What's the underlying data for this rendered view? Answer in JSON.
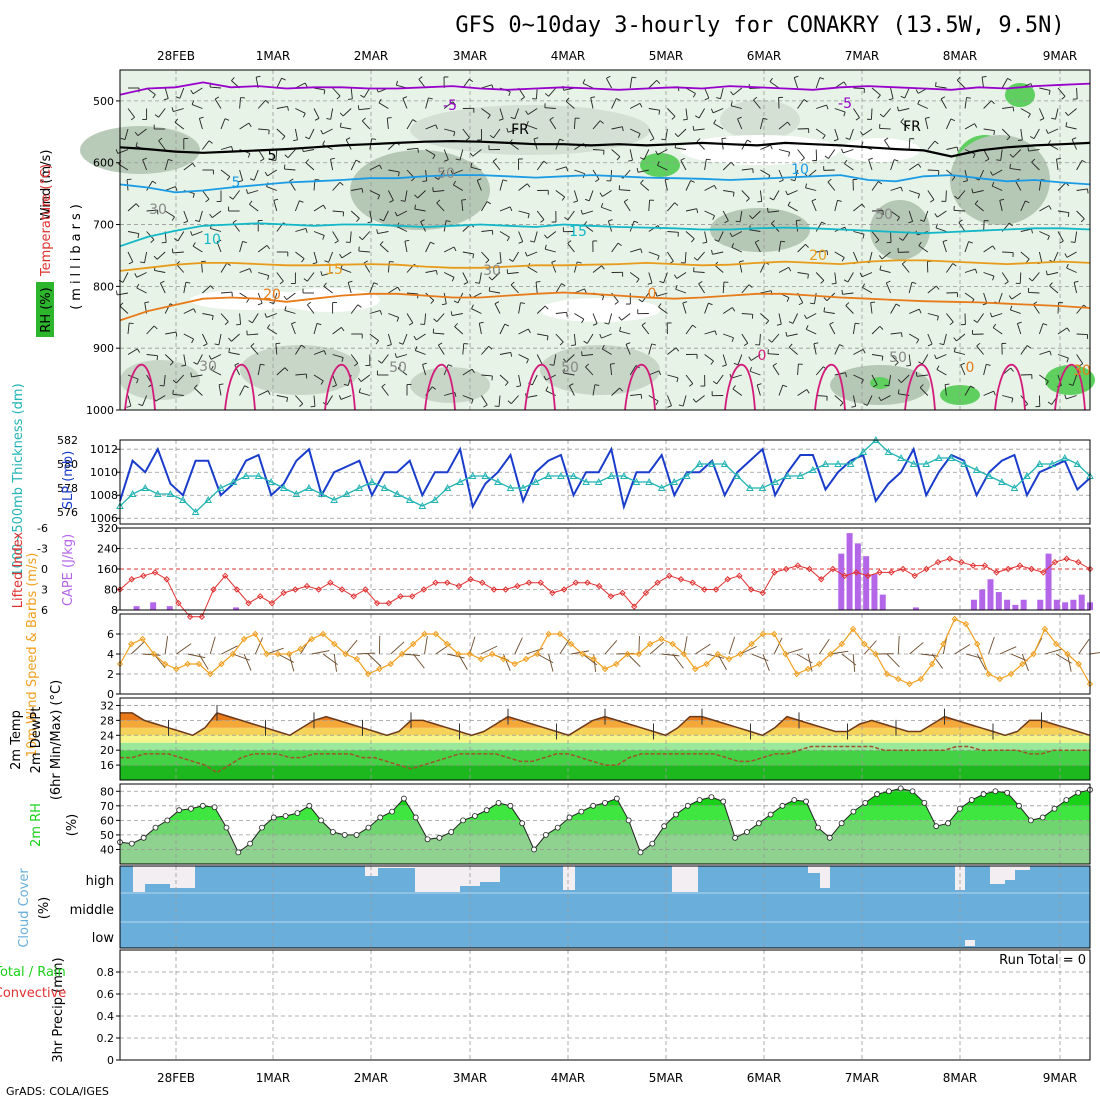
{
  "chart_data": [
    {
      "type": "line",
      "title": "GFS 0~10day 3-hourly for CONAKRY (13.5W, 9.5N)",
      "x": [
        "28FEB",
        "1MAR",
        "2MAR",
        "3MAR",
        "4MAR",
        "5MAR",
        "6MAR",
        "7MAR",
        "8MAR",
        "9MAR"
      ],
      "ylabel": "(millibars)",
      "ylabels": {
        "temp": "Temperature (°C)",
        "wind": "Wind (m/s)",
        "rh": "RH (%)"
      },
      "ylim": [
        1000,
        450
      ],
      "yticks": [
        "500",
        "600",
        "700",
        "800",
        "900",
        "1000"
      ],
      "contours": [
        {
          "name": "-5",
          "color": "#9900cc",
          "label": "-5",
          "p": [
            490,
            480,
            478,
            470,
            478,
            476,
            480,
            478,
            478,
            480,
            480,
            478,
            476,
            480,
            482,
            480,
            478,
            480,
            482,
            480,
            478,
            480,
            476,
            478,
            480,
            482,
            478,
            476,
            478,
            480,
            482,
            478,
            480,
            476,
            474,
            472
          ]
        },
        {
          "name": "FR",
          "color": "#000000",
          "label": "FR",
          "p": [
            575,
            578,
            582,
            584,
            582,
            580,
            578,
            575,
            572,
            570,
            568,
            566,
            565,
            566,
            568,
            570,
            570,
            572,
            570,
            572,
            570,
            568,
            570,
            572,
            568,
            570,
            572,
            575,
            578,
            580,
            590,
            580,
            575,
            572,
            570,
            568
          ]
        },
        {
          "name": "5",
          "color": "#1a9be6",
          "label": "5",
          "p": [
            635,
            640,
            648,
            645,
            640,
            636,
            632,
            630,
            628,
            625,
            625,
            622,
            620,
            620,
            622,
            624,
            622,
            620,
            622,
            624,
            625,
            626,
            628,
            626,
            624,
            622,
            620,
            628,
            630,
            622,
            620,
            625,
            630,
            628,
            632,
            635
          ]
        },
        {
          "name": "10",
          "color": "#12b8c8",
          "label": "10",
          "p": [
            735,
            720,
            710,
            702,
            700,
            698,
            700,
            702,
            700,
            700,
            702,
            704,
            702,
            700,
            702,
            704,
            700,
            702,
            704,
            705,
            706,
            708,
            708,
            706,
            705,
            706,
            708,
            710,
            712,
            714,
            712,
            710,
            708,
            706,
            706,
            708
          ]
        },
        {
          "name": "15",
          "color": "#e89b1a",
          "label": "15",
          "p": [
            775,
            770,
            765,
            762,
            762,
            764,
            766,
            766,
            765,
            764,
            765,
            768,
            770,
            770,
            768,
            766,
            766,
            765,
            764,
            762,
            764,
            766,
            765,
            762,
            760,
            762,
            764,
            760,
            758,
            758,
            760,
            762,
            764,
            762,
            760,
            762
          ]
        },
        {
          "name": "20",
          "color": "#e87a1a",
          "label": "20",
          "p": [
            855,
            840,
            830,
            820,
            818,
            820,
            825,
            820,
            815,
            812,
            812,
            815,
            818,
            818,
            815,
            812,
            810,
            812,
            815,
            818,
            820,
            818,
            815,
            812,
            812,
            815,
            818,
            820,
            822,
            824,
            825,
            826,
            828,
            830,
            832,
            835
          ]
        }
      ],
      "contour_labels": [
        "-5",
        "-5",
        "FR",
        "FR",
        "5",
        "5",
        "10",
        "10",
        "15",
        "15",
        "20",
        "20",
        "0",
        "0",
        "0",
        "30",
        "30",
        "30",
        "30",
        "50",
        "50",
        "50",
        "50",
        "50"
      ]
    },
    {
      "type": "line",
      "ylabels": {
        "thick": "1000~500mb Thickness (dm)",
        "slp": "SLP (mb)"
      },
      "thick_ticks": [
        "582",
        "580",
        "578",
        "576"
      ],
      "slp_ticks": [
        "1012",
        "1010",
        "1008",
        "1006"
      ],
      "slp_ylim": [
        1005.5,
        1012.8
      ],
      "series": [
        {
          "name": "SLP",
          "color": "#1a3ccc",
          "values": [
            1007.5,
            1011,
            1010,
            1012,
            1009,
            1008,
            1011,
            1011,
            1008,
            1009,
            1011,
            1011.5,
            1008,
            1009,
            1011,
            1012,
            1008,
            1010,
            1010.5,
            1011,
            1008,
            1010,
            1010,
            1011,
            1008,
            1010,
            1010,
            1012,
            1007,
            1009,
            1010,
            1011.5,
            1007.5,
            1010,
            1011,
            1011.5,
            1008,
            1010,
            1010,
            1012,
            1007,
            1010,
            1010,
            1011.5,
            1008,
            1010,
            1010,
            1011,
            1008,
            1010,
            1011,
            1012,
            1008,
            1010,
            1011.5,
            1011.5,
            1008.5,
            1010,
            1011,
            1011.5,
            1007.5,
            1009,
            1010,
            1012,
            1008,
            1010,
            1011.5,
            1011,
            1008,
            1010,
            1011,
            1011.5,
            1008,
            1010,
            1010.5,
            1011,
            1008.5,
            1009.5
          ]
        },
        {
          "name": "Thickness",
          "color": "#22b3b3",
          "values": [
            576.5,
            577.5,
            578,
            577.5,
            577.5,
            577,
            576,
            577,
            578,
            578.5,
            579,
            579,
            578.5,
            578,
            577.5,
            578,
            577.5,
            577,
            577.5,
            578,
            578.5,
            578,
            577.5,
            577,
            576.5,
            577,
            578,
            578.5,
            579,
            579,
            578.5,
            578,
            578,
            578.5,
            579,
            579,
            579,
            578.5,
            578.5,
            579,
            579,
            578.5,
            578.5,
            578,
            578.5,
            579,
            580,
            580,
            580,
            579,
            578,
            578,
            578.5,
            579,
            579,
            579.5,
            580,
            580,
            580,
            581,
            582,
            581,
            580.5,
            580,
            580,
            580.5,
            580.5,
            580,
            579.5,
            579,
            578.5,
            578,
            579,
            580,
            580,
            580.5,
            580,
            579
          ]
        }
      ]
    },
    {
      "type": "bar",
      "ylabels": {
        "li": "Lifted Index",
        "cape": "CAPE (J/kg)"
      },
      "li_ticks": [
        "-6",
        "-3",
        "0",
        "3",
        "6"
      ],
      "cape_ticks": [
        "320",
        "240",
        "160",
        "80",
        "8"
      ],
      "series": [
        {
          "name": "Lifted Index",
          "color": "#e03030",
          "values": [
            3,
            1.5,
            1,
            0.5,
            1.5,
            5,
            7,
            7,
            3,
            1,
            3,
            5,
            4,
            5,
            3.5,
            3,
            2.5,
            3,
            2,
            3,
            4,
            3,
            5,
            5,
            4,
            4,
            3,
            2,
            2,
            2.5,
            1.5,
            2,
            3,
            3,
            2.5,
            2,
            2,
            3.5,
            3,
            2,
            2,
            2.5,
            4,
            3.5,
            5.5,
            3.5,
            2,
            1,
            1.5,
            2,
            3,
            3,
            1.5,
            1,
            3,
            3.5,
            0.5,
            0,
            -0.5,
            0,
            1.5,
            0,
            1,
            0.5,
            1,
            0.5,
            0.5,
            0,
            1,
            0,
            -1,
            -1.5,
            -1,
            -0.5,
            -0.5,
            0.5,
            0,
            -0.5,
            0,
            0.5,
            -1,
            -1.5,
            -1,
            0
          ]
        },
        {
          "name": "CAPE",
          "color": "#b366e8",
          "values": [
            0,
            0,
            15,
            0,
            30,
            0,
            15,
            0,
            0,
            0,
            0,
            0,
            0,
            0,
            10,
            0,
            0,
            0,
            0,
            0,
            0,
            0,
            0,
            0,
            0,
            0,
            0,
            0,
            0,
            0,
            0,
            0,
            0,
            0,
            0,
            0,
            0,
            0,
            0,
            0,
            0,
            0,
            0,
            0,
            0,
            0,
            0,
            0,
            0,
            0,
            0,
            0,
            0,
            0,
            0,
            0,
            0,
            0,
            0,
            0,
            0,
            0,
            0,
            0,
            0,
            0,
            0,
            0,
            0,
            0,
            0,
            0,
            0,
            0,
            0,
            0,
            0,
            0,
            0,
            0,
            0,
            0,
            0,
            0,
            0,
            0,
            0,
            220,
            300,
            260,
            210,
            140,
            60,
            0,
            0,
            0,
            10,
            0,
            0,
            0,
            0,
            0,
            0,
            40,
            80,
            120,
            70,
            40,
            20,
            40,
            0,
            40,
            220,
            40,
            30,
            40,
            60,
            30
          ]
        }
      ]
    },
    {
      "type": "line",
      "ylabels": {
        "wind": "10m Wind Speed & Barbs (m/s)"
      },
      "yticks": [
        "6",
        "4",
        "2",
        "0"
      ],
      "series": [
        {
          "name": "10m Wind Speed",
          "color": "#f0a020",
          "values": [
            3,
            5,
            5.5,
            4,
            3,
            2.5,
            3,
            3,
            2,
            3,
            4,
            5.5,
            6,
            4,
            4,
            4,
            4.5,
            5.5,
            6,
            5,
            4,
            3.5,
            2,
            2.5,
            3,
            4,
            5,
            6,
            6,
            5,
            4,
            4,
            3.5,
            4,
            3.5,
            3,
            3.5,
            4,
            6,
            6,
            5,
            4,
            3.5,
            2.5,
            3,
            4,
            4,
            5,
            5.5,
            5,
            4,
            2.5,
            3,
            4,
            3.5,
            4,
            5,
            6,
            6,
            4,
            2,
            2.5,
            3,
            4,
            5,
            6.5,
            5,
            4,
            2,
            1.5,
            1,
            1.5,
            3,
            5,
            7.5,
            7,
            5,
            2,
            1.5,
            2,
            3,
            4,
            6.5,
            5,
            4,
            3,
            1
          ]
        }
      ]
    },
    {
      "type": "area",
      "ylabels": {
        "temp": "2m Temp",
        "dew": "2m DewPt",
        "minmax": "(6hr Min/Max) (°C)"
      },
      "yticks": [
        "32",
        "28",
        "24",
        "20",
        "16"
      ],
      "series": [
        {
          "name": "2m Temp",
          "color": "#e87a1a",
          "values": [
            30,
            30,
            28,
            27,
            26,
            25,
            24,
            26,
            30,
            29,
            28,
            27,
            26,
            25,
            24,
            26,
            28,
            29,
            28,
            27,
            26,
            25,
            24,
            25,
            28,
            28,
            27,
            26,
            25,
            24,
            25,
            27,
            29,
            28,
            27,
            26,
            25,
            24,
            26,
            28,
            29,
            28,
            27,
            26,
            25,
            24,
            26,
            29,
            29,
            28,
            27,
            26,
            25,
            24,
            26,
            29,
            28,
            27,
            26,
            25,
            25,
            27,
            28,
            27,
            26,
            25,
            25,
            27,
            29,
            28,
            27,
            26,
            25,
            24,
            25,
            28,
            28,
            27,
            26,
            25,
            24
          ]
        },
        {
          "name": "2m DewPt",
          "color": "#a0522d",
          "values": [
            18,
            18,
            19,
            19,
            19,
            18,
            17,
            16,
            14,
            16,
            18,
            19,
            19,
            19,
            18,
            18,
            19,
            19,
            19,
            19,
            18,
            18,
            17,
            16,
            15,
            16,
            17,
            18,
            19,
            19,
            19,
            19,
            18,
            17,
            17,
            18,
            19,
            19,
            18,
            17,
            16,
            16,
            18,
            19,
            19,
            19,
            19,
            19,
            19,
            19,
            18,
            17,
            17,
            18,
            19,
            19,
            20,
            21,
            21,
            21,
            21,
            21,
            21,
            20,
            20,
            20,
            20,
            20,
            20,
            21,
            21,
            20,
            20,
            20,
            20,
            19,
            19,
            20,
            20,
            20,
            20
          ]
        }
      ]
    },
    {
      "type": "area",
      "ylabels": {
        "rh": "2m RH",
        "unit": "(%)"
      },
      "yticks": [
        "80",
        "70",
        "60",
        "50",
        "40"
      ],
      "series": [
        {
          "name": "2m RH",
          "color": "#1ad11a",
          "values": [
            45,
            44,
            48,
            55,
            60,
            67,
            68,
            70,
            69,
            55,
            38,
            44,
            55,
            62,
            63,
            65,
            70,
            60,
            52,
            50,
            50,
            55,
            62,
            66,
            75,
            62,
            47,
            48,
            52,
            60,
            63,
            67,
            72,
            70,
            58,
            40,
            50,
            55,
            62,
            66,
            70,
            72,
            75,
            60,
            38,
            44,
            56,
            64,
            70,
            74,
            76,
            73,
            48,
            52,
            58,
            64,
            70,
            74,
            73,
            55,
            48,
            58,
            66,
            72,
            78,
            80,
            82,
            80,
            72,
            56,
            58,
            68,
            74,
            78,
            80,
            79,
            70,
            60,
            62,
            68,
            74,
            79,
            81
          ]
        }
      ]
    },
    {
      "type": "area",
      "ylabels": {
        "cc": "Cloud Cover",
        "unit": "(%)"
      },
      "categories": [
        "high",
        "middle",
        "low"
      ]
    },
    {
      "type": "bar",
      "ylabels": {
        "precip": "3hr Precip (mm)",
        "total": "Total / Rain",
        "conv": "Convective"
      },
      "yticks": [
        "0.8",
        "0.6",
        "0.4",
        "0.2",
        "0"
      ],
      "annotation": "Run Total = 0",
      "series": [
        {
          "name": "Precip",
          "values": []
        }
      ]
    }
  ],
  "footer": "GrADS: COLA/IGES",
  "colors": {
    "temp": "#e03030",
    "cape": "#b366e8",
    "thick": "#22b3b3",
    "slp": "#1a3ccc",
    "wind": "#f0a020",
    "rh": "#1ad11a",
    "cloud": "#6aafdc"
  }
}
